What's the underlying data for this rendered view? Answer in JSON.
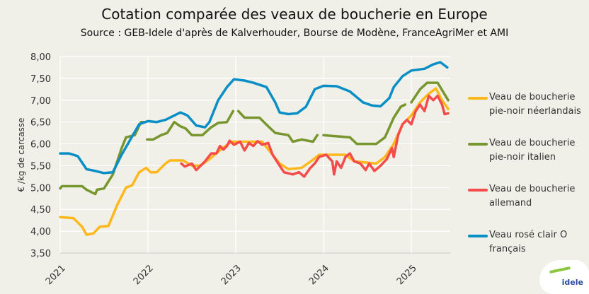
{
  "chart_data": {
    "type": "line",
    "title": "Cotation comparée des veaux de boucherie en Europe",
    "subtitle": "Source : GEB-Idele d'après de Kalverhouder, Bourse de Modène, FranceAgriMer et AMI",
    "ylabel": "€ /kg de carcasse",
    "xlabel": "",
    "ylim": [
      3.5,
      8.0
    ],
    "xlim": [
      2021.0,
      2025.43
    ],
    "yticks": [
      "3,50",
      "4,00",
      "4,50",
      "5,00",
      "5,50",
      "6,00",
      "6,50",
      "7,00",
      "7,50",
      "8,00"
    ],
    "ytick_values": [
      3.5,
      4.0,
      4.5,
      5.0,
      5.5,
      6.0,
      6.5,
      7.0,
      7.5,
      8.0
    ],
    "xticks": [
      "2021",
      "2022",
      "2023",
      "2024",
      "2025"
    ],
    "xtick_values": [
      2021,
      2022,
      2023,
      2024,
      2025
    ],
    "grid": true,
    "legend_position": "right",
    "series": [
      {
        "name": "Veau de boucherie pie-noir néerlandais",
        "legend_lines": [
          "Veau de boucherie",
          "pie-noir néerlandais"
        ],
        "color": "#ffb81c",
        "points": [
          [
            2021.0,
            4.32
          ],
          [
            2021.15,
            4.3
          ],
          [
            2021.25,
            4.1
          ],
          [
            2021.3,
            3.92
          ],
          [
            2021.38,
            3.95
          ],
          [
            2021.45,
            4.1
          ],
          [
            2021.55,
            4.12
          ],
          [
            2021.65,
            4.6
          ],
          [
            2021.75,
            5.0
          ],
          [
            2021.82,
            5.05
          ],
          [
            2021.9,
            5.35
          ],
          [
            2021.98,
            5.45
          ],
          [
            2022.03,
            5.35
          ],
          [
            2022.1,
            5.35
          ],
          [
            2022.2,
            5.55
          ],
          [
            2022.25,
            5.62
          ],
          [
            2022.4,
            5.62
          ],
          [
            2022.5,
            5.5
          ],
          [
            2022.6,
            5.5
          ],
          [
            2022.7,
            5.65
          ],
          [
            2022.85,
            5.9
          ],
          [
            2022.95,
            6.05
          ],
          [
            2023.3,
            6.05
          ],
          [
            2023.4,
            5.8
          ],
          [
            2023.5,
            5.55
          ],
          [
            2023.6,
            5.42
          ],
          [
            2023.75,
            5.45
          ],
          [
            2023.87,
            5.62
          ],
          [
            2023.95,
            5.75
          ],
          [
            2024.25,
            5.75
          ],
          [
            2024.35,
            5.6
          ],
          [
            2024.6,
            5.55
          ],
          [
            2024.7,
            5.7
          ],
          [
            2024.8,
            6.0
          ],
          [
            2024.9,
            6.45
          ],
          [
            2025.0,
            6.65
          ],
          [
            2025.1,
            6.95
          ],
          [
            2025.2,
            7.15
          ],
          [
            2025.28,
            7.27
          ],
          [
            2025.35,
            7.0
          ],
          [
            2025.42,
            6.8
          ]
        ]
      },
      {
        "name": "Veau de boucherie pie-noir italien",
        "legend_lines": [
          "Veau de boucherie",
          "pie-noir italien"
        ],
        "color": "#78962e",
        "points": [
          [
            2021.0,
            4.98
          ],
          [
            2021.02,
            5.03
          ],
          [
            2021.25,
            5.03
          ],
          [
            2021.3,
            4.95
          ],
          [
            2021.4,
            4.85
          ],
          [
            2021.42,
            4.95
          ],
          [
            2021.5,
            4.98
          ],
          [
            2021.6,
            5.3
          ],
          [
            2021.7,
            5.9
          ],
          [
            2021.75,
            6.15
          ],
          [
            2021.85,
            6.2
          ],
          [
            2021.92,
            6.5
          ],
          [
            2021.97,
            6.5
          ],
          null,
          [
            2021.99,
            6.1
          ],
          [
            2022.06,
            6.1
          ],
          [
            2022.15,
            6.2
          ],
          [
            2022.22,
            6.25
          ],
          [
            2022.3,
            6.5
          ],
          [
            2022.37,
            6.4
          ],
          [
            2022.43,
            6.35
          ],
          [
            2022.5,
            6.2
          ],
          [
            2022.62,
            6.2
          ],
          [
            2022.72,
            6.38
          ],
          [
            2022.8,
            6.48
          ],
          [
            2022.9,
            6.5
          ],
          [
            2022.97,
            6.75
          ],
          null,
          [
            2023.03,
            6.75
          ],
          [
            2023.1,
            6.6
          ],
          [
            2023.27,
            6.6
          ],
          [
            2023.37,
            6.4
          ],
          [
            2023.45,
            6.25
          ],
          [
            2023.6,
            6.2
          ],
          [
            2023.65,
            6.05
          ],
          [
            2023.75,
            6.1
          ],
          [
            2023.88,
            6.05
          ],
          [
            2023.93,
            6.2
          ],
          null,
          [
            2024.0,
            6.2
          ],
          [
            2024.1,
            6.18
          ],
          [
            2024.3,
            6.15
          ],
          [
            2024.38,
            6.0
          ],
          [
            2024.6,
            6.0
          ],
          [
            2024.7,
            6.15
          ],
          [
            2024.8,
            6.6
          ],
          [
            2024.88,
            6.85
          ],
          [
            2024.93,
            6.9
          ],
          null,
          [
            2025.0,
            6.95
          ],
          [
            2025.1,
            7.25
          ],
          [
            2025.18,
            7.4
          ],
          [
            2025.3,
            7.4
          ],
          [
            2025.42,
            7.0
          ]
        ]
      },
      {
        "name": "Veau de boucherie allemand",
        "legend_lines": [
          "Veau de boucherie",
          "allemand"
        ],
        "color": "#f44b4b",
        "points": [
          [
            2022.38,
            5.55
          ],
          [
            2022.42,
            5.48
          ],
          [
            2022.5,
            5.55
          ],
          [
            2022.55,
            5.4
          ],
          [
            2022.65,
            5.6
          ],
          [
            2022.72,
            5.78
          ],
          [
            2022.78,
            5.78
          ],
          [
            2022.82,
            5.95
          ],
          [
            2022.86,
            5.87
          ],
          [
            2022.9,
            5.95
          ],
          [
            2022.93,
            6.07
          ],
          [
            2022.98,
            5.98
          ],
          [
            2023.05,
            6.05
          ],
          [
            2023.1,
            5.85
          ],
          [
            2023.15,
            6.02
          ],
          [
            2023.2,
            5.95
          ],
          [
            2023.25,
            6.06
          ],
          [
            2023.3,
            5.98
          ],
          [
            2023.37,
            6.02
          ],
          [
            2023.42,
            5.75
          ],
          [
            2023.5,
            5.5
          ],
          [
            2023.55,
            5.35
          ],
          [
            2023.65,
            5.3
          ],
          [
            2023.72,
            5.35
          ],
          [
            2023.78,
            5.25
          ],
          [
            2023.85,
            5.45
          ],
          [
            2023.9,
            5.55
          ],
          [
            2023.95,
            5.7
          ],
          [
            2024.03,
            5.75
          ],
          [
            2024.1,
            5.6
          ],
          [
            2024.12,
            5.3
          ],
          [
            2024.15,
            5.6
          ],
          [
            2024.2,
            5.45
          ],
          [
            2024.25,
            5.7
          ],
          [
            2024.3,
            5.78
          ],
          [
            2024.35,
            5.6
          ],
          [
            2024.42,
            5.55
          ],
          [
            2024.48,
            5.4
          ],
          [
            2024.52,
            5.55
          ],
          [
            2024.58,
            5.38
          ],
          [
            2024.65,
            5.5
          ],
          [
            2024.72,
            5.65
          ],
          [
            2024.78,
            5.9
          ],
          [
            2024.8,
            5.7
          ],
          [
            2024.85,
            6.2
          ],
          [
            2024.9,
            6.45
          ],
          [
            2024.95,
            6.55
          ],
          [
            2025.0,
            6.45
          ],
          [
            2025.05,
            6.75
          ],
          [
            2025.1,
            6.9
          ],
          [
            2025.15,
            6.75
          ],
          [
            2025.2,
            7.1
          ],
          [
            2025.25,
            7.0
          ],
          [
            2025.3,
            7.1
          ],
          [
            2025.35,
            6.9
          ],
          [
            2025.38,
            6.68
          ],
          [
            2025.42,
            6.7
          ]
        ]
      },
      {
        "name": "Veau rosé clair O français",
        "legend_lines": [
          "Veau rosé clair O",
          "français"
        ],
        "color": "#0a8ec6",
        "points": [
          [
            2021.0,
            5.78
          ],
          [
            2021.1,
            5.78
          ],
          [
            2021.2,
            5.72
          ],
          [
            2021.3,
            5.42
          ],
          [
            2021.4,
            5.38
          ],
          [
            2021.5,
            5.33
          ],
          [
            2021.6,
            5.35
          ],
          [
            2021.7,
            5.75
          ],
          [
            2021.8,
            6.1
          ],
          [
            2021.9,
            6.45
          ],
          [
            2022.0,
            6.52
          ],
          [
            2022.1,
            6.5
          ],
          [
            2022.2,
            6.55
          ],
          [
            2022.3,
            6.65
          ],
          [
            2022.37,
            6.72
          ],
          [
            2022.45,
            6.65
          ],
          [
            2022.55,
            6.42
          ],
          [
            2022.65,
            6.38
          ],
          [
            2022.7,
            6.5
          ],
          [
            2022.8,
            7.0
          ],
          [
            2022.9,
            7.3
          ],
          [
            2022.98,
            7.48
          ],
          [
            2023.1,
            7.45
          ],
          [
            2023.2,
            7.4
          ],
          [
            2023.35,
            7.3
          ],
          [
            2023.45,
            6.95
          ],
          [
            2023.5,
            6.72
          ],
          [
            2023.6,
            6.68
          ],
          [
            2023.7,
            6.7
          ],
          [
            2023.8,
            6.85
          ],
          [
            2023.9,
            7.25
          ],
          [
            2024.0,
            7.33
          ],
          [
            2024.15,
            7.32
          ],
          [
            2024.3,
            7.2
          ],
          [
            2024.45,
            6.95
          ],
          [
            2024.55,
            6.88
          ],
          [
            2024.65,
            6.86
          ],
          [
            2024.75,
            7.05
          ],
          [
            2024.8,
            7.3
          ],
          [
            2024.9,
            7.55
          ],
          [
            2025.0,
            7.68
          ],
          [
            2025.15,
            7.72
          ],
          [
            2025.25,
            7.82
          ],
          [
            2025.33,
            7.87
          ],
          [
            2025.41,
            7.75
          ]
        ]
      }
    ]
  },
  "logo": {
    "text": "idele"
  }
}
